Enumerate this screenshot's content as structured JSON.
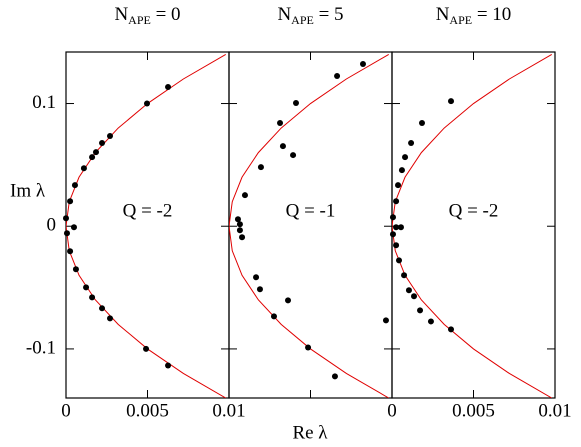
{
  "figure": {
    "xlabel": "Re λ",
    "ylabel": "Im λ"
  },
  "chart_data": [
    {
      "type": "scatter",
      "title": {
        "base": "N",
        "sub": "APE",
        "tail": " = 0"
      },
      "annotation": "Q = -2",
      "xlim": [
        0,
        0.01
      ],
      "ylim": [
        -0.14,
        0.142
      ],
      "xticks": [
        0,
        0.005,
        0.01
      ],
      "yticks": [
        -0.1,
        0,
        0.1
      ],
      "show_xtick_labels": true,
      "show_ytick_labels": true,
      "curve": {
        "color": "#e00000",
        "x": [
          0.0098,
          0.0072,
          0.005,
          0.0032,
          0.0018,
          0.0008,
          0.0002,
          0,
          0.0002,
          0.0008,
          0.0018,
          0.0032,
          0.005,
          0.0072,
          0.0098
        ],
        "y": [
          -0.14,
          -0.12,
          -0.1,
          -0.08,
          -0.06,
          -0.04,
          -0.02,
          0,
          0.02,
          0.04,
          0.06,
          0.08,
          0.1,
          0.12,
          0.14
        ]
      },
      "points": {
        "color": "#000000",
        "x": [
          0.00626,
          0.00497,
          0.0027,
          0.00221,
          0.00184,
          0.0016,
          0.0011,
          0.00055,
          0.00025,
          0,
          0.00049,
          6e-05,
          0.00025,
          0.00061,
          0.00123,
          0.0016,
          0.00221,
          0.0027,
          0.00491,
          0.00626
        ],
        "y": [
          0.1135,
          0.1,
          0.0735,
          0.0678,
          0.0604,
          0.0563,
          0.0473,
          0.0335,
          0.0204,
          0.0065,
          -0.0008,
          -0.0057,
          -0.0204,
          -0.0351,
          -0.0498,
          -0.058,
          -0.0669,
          -0.0751,
          -0.1,
          -0.1135
        ]
      }
    },
    {
      "type": "scatter",
      "title": {
        "base": "N",
        "sub": "APE",
        "tail": " = 5"
      },
      "annotation": "Q = -1",
      "xlim": [
        0,
        0.01
      ],
      "ylim": [
        -0.14,
        0.142
      ],
      "xticks": [
        0,
        0.005,
        0.01
      ],
      "yticks": [
        -0.1,
        0,
        0.1
      ],
      "show_xtick_labels": false,
      "show_ytick_labels": false,
      "curve": {
        "color": "#e00000",
        "x": [
          0.0098,
          0.0072,
          0.005,
          0.0032,
          0.0018,
          0.0008,
          0.0002,
          0,
          0.0002,
          0.0008,
          0.0018,
          0.0032,
          0.005,
          0.0072,
          0.0098
        ],
        "y": [
          -0.14,
          -0.12,
          -0.1,
          -0.08,
          -0.06,
          -0.04,
          -0.02,
          0,
          0.02,
          0.04,
          0.06,
          0.08,
          0.1,
          0.12,
          0.14
        ]
      },
      "points": {
        "color": "#000000",
        "x": [
          0.00822,
          0.00663,
          0.00411,
          0.00313,
          0.00331,
          0.00393,
          0.00196,
          0.00098,
          0.00055,
          0.00067,
          0.00067,
          0.0008,
          0.00166,
          0.0019,
          0.00362,
          0.00276,
          0.00485,
          0.0065,
          0.00963
        ],
        "y": [
          0.1322,
          0.1224,
          0.1004,
          0.0841,
          0.0653,
          0.058,
          0.0482,
          0.0253,
          0.0057,
          0.0016,
          -0.0033,
          -0.009,
          -0.0416,
          -0.0514,
          -0.0604,
          -0.0735,
          -0.0988,
          -0.1224,
          -0.0767
        ]
      }
    },
    {
      "type": "scatter",
      "title": {
        "base": "N",
        "sub": "APE",
        "tail": " = 10"
      },
      "annotation": "Q = -2",
      "xlim": [
        0,
        0.01
      ],
      "ylim": [
        -0.14,
        0.142
      ],
      "xticks": [
        0,
        0.005,
        0.01
      ],
      "yticks": [
        -0.1,
        0,
        0.1
      ],
      "show_xtick_labels": true,
      "show_ytick_labels": false,
      "curve": {
        "color": "#e00000",
        "x": [
          0.0098,
          0.0072,
          0.005,
          0.0032,
          0.0018,
          0.0008,
          0.0002,
          0,
          0.0002,
          0.0008,
          0.0018,
          0.0032,
          0.005,
          0.0072,
          0.0098
        ],
        "y": [
          -0.14,
          -0.12,
          -0.1,
          -0.08,
          -0.06,
          -0.04,
          -0.02,
          0,
          0.02,
          0.04,
          0.06,
          0.08,
          0.1,
          0.12,
          0.14
        ]
      },
      "points": {
        "color": "#000000",
        "x": [
          0.00362,
          0.00184,
          0.00117,
          0.0008,
          0.00061,
          0.00037,
          0.00025,
          6e-05,
          0.00025,
          0.00055,
          6e-05,
          0.00025,
          0.00043,
          0.00074,
          0.00104,
          0.00135,
          0.00172,
          0.00239,
          0.00362
        ],
        "y": [
          0.102,
          0.0841,
          0.0678,
          0.0563,
          0.0457,
          0.0335,
          0.0204,
          0.0073,
          -0.0008,
          -0.0008,
          -0.0065,
          -0.0155,
          -0.0278,
          -0.04,
          -0.0522,
          -0.0571,
          -0.0686,
          -0.0776,
          -0.0841
        ]
      }
    }
  ]
}
